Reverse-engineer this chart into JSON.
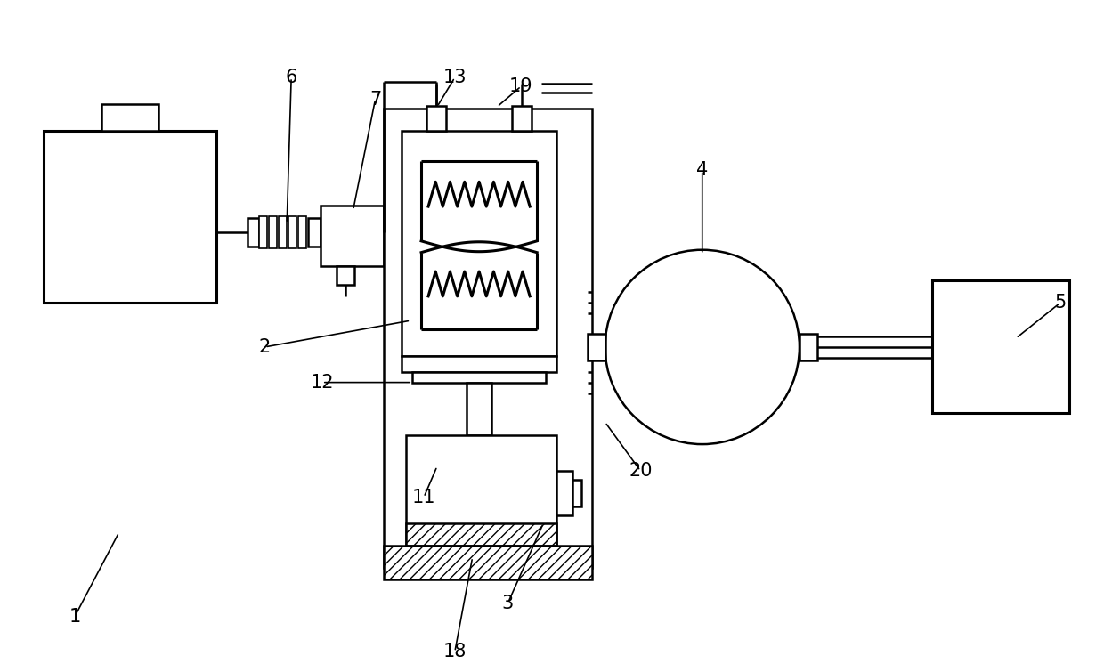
{
  "bg_color": "#ffffff",
  "lc": "#000000",
  "lw": 1.8,
  "tlw": 2.2,
  "fig_width": 12.4,
  "fig_height": 7.55,
  "dpi": 100
}
